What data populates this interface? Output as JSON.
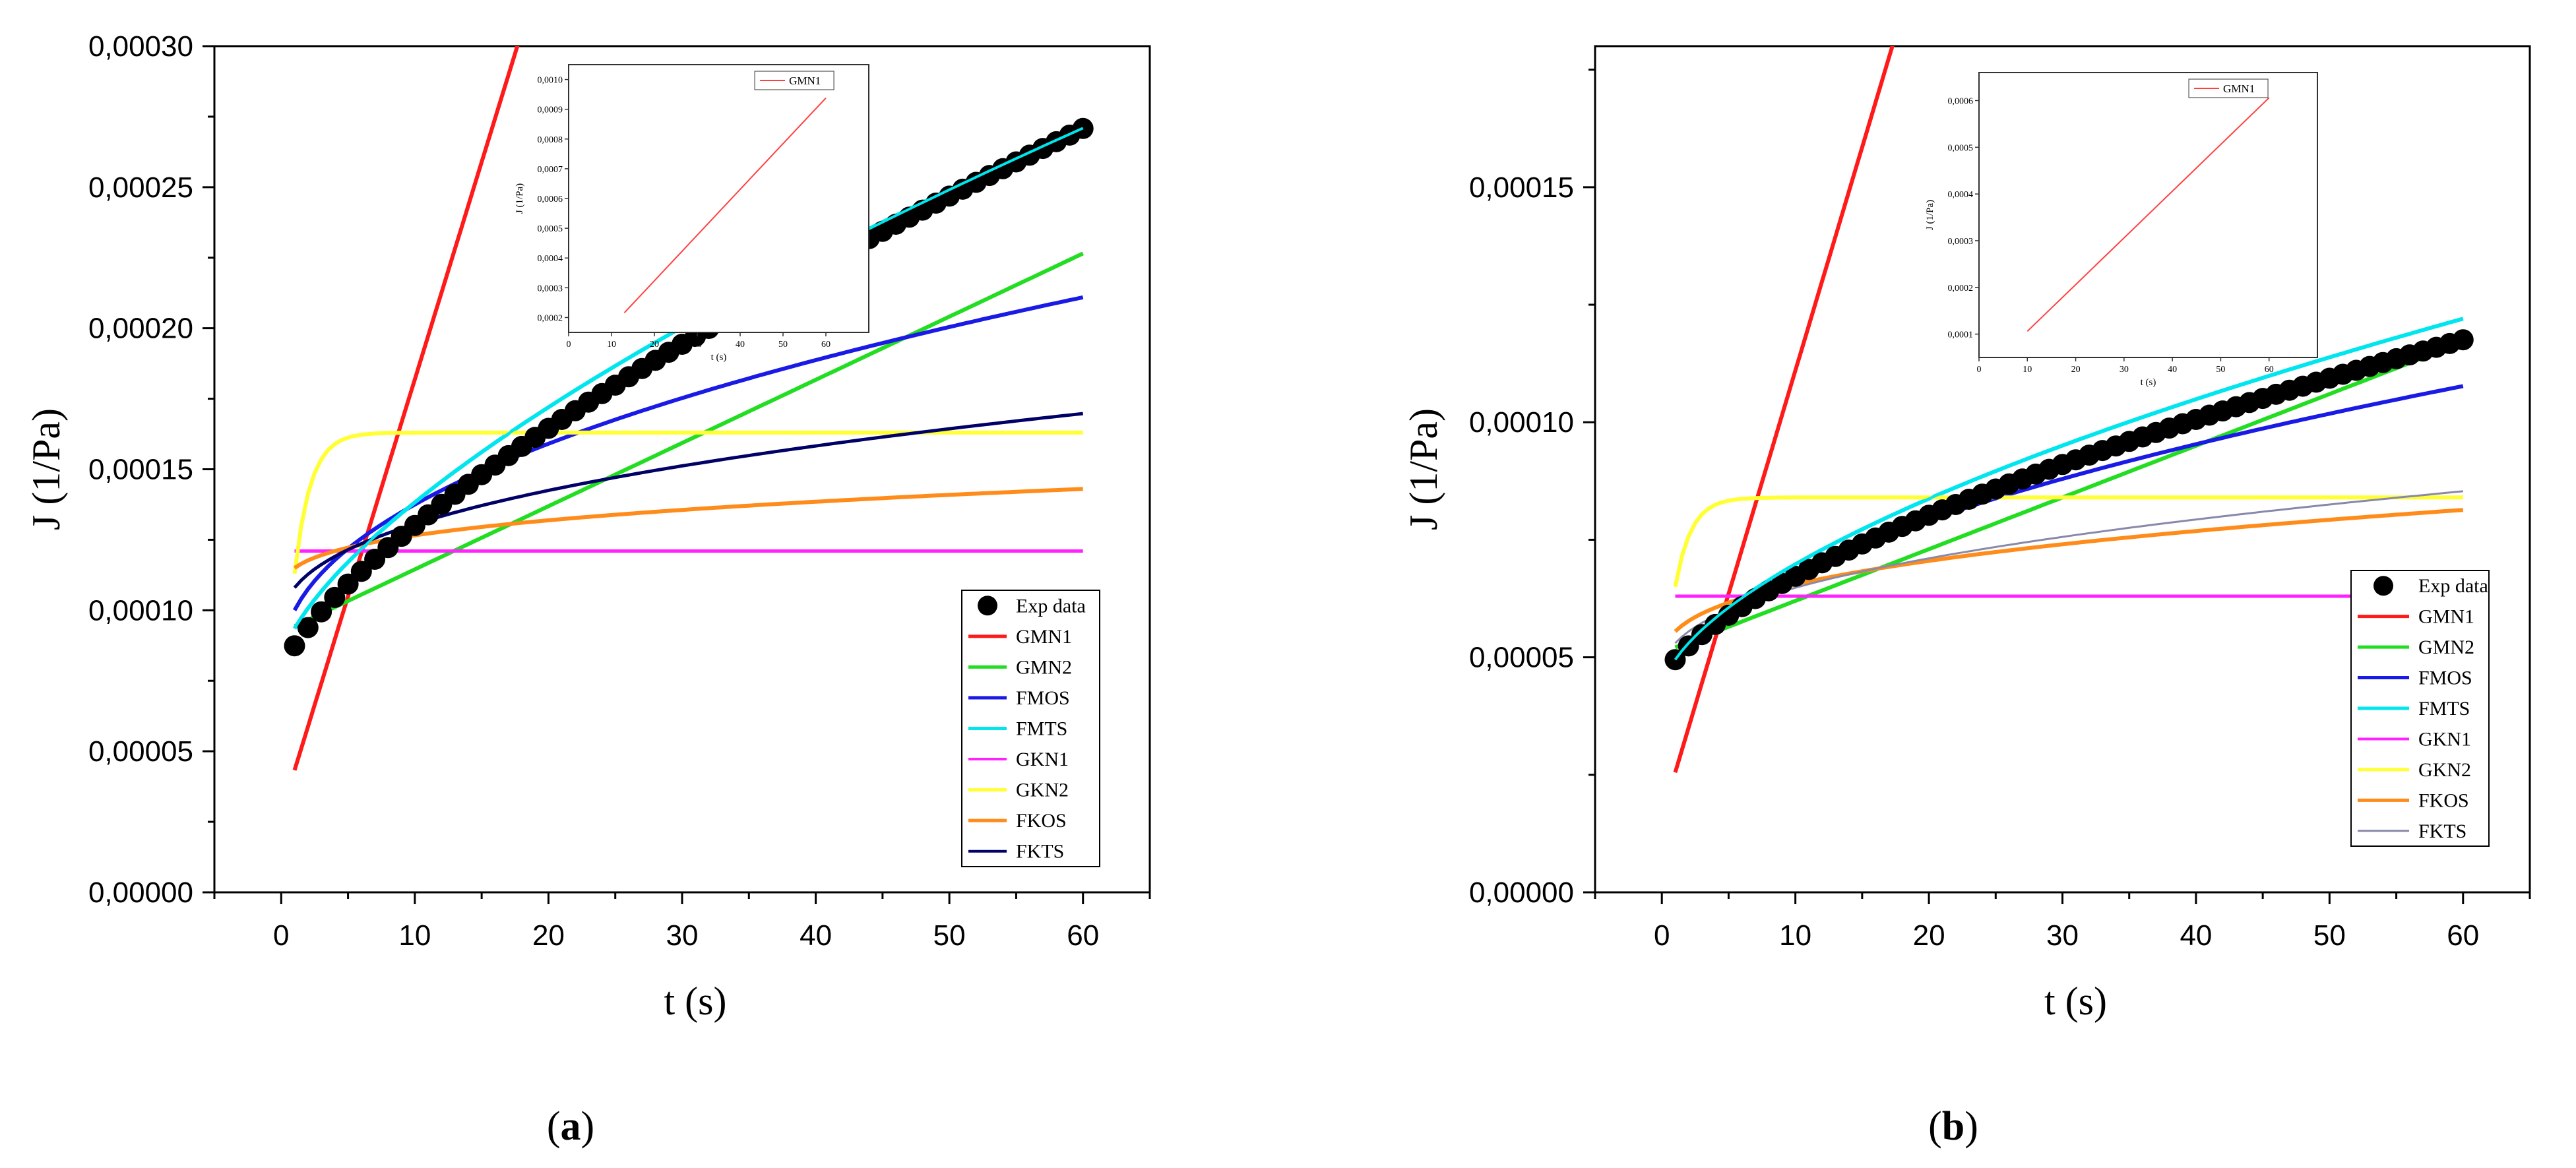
{
  "chart_data": [
    {
      "type": "line",
      "panel": "a",
      "panel_label": "(a)",
      "panel_label_parts": [
        "(",
        "a",
        ")"
      ],
      "xlabel": "t (s)",
      "ylabel": "J (1/Pa)",
      "xlim": [
        -5,
        65
      ],
      "ylim": [
        0,
        0.0003
      ],
      "xticks": [
        0,
        10,
        20,
        30,
        40,
        50,
        60
      ],
      "xtick_labels": [
        "0",
        "10",
        "20",
        "30",
        "40",
        "50",
        "60"
      ],
      "yticks": [
        0,
        5e-05,
        0.0001,
        0.00015,
        0.0002,
        0.00025,
        0.0003
      ],
      "ytick_labels": [
        "0,00000",
        "0,00005",
        "0,00010",
        "0,00015",
        "0,00020",
        "0,00025",
        "0,00030"
      ],
      "legend": [
        "Exp data",
        "GMN1",
        "GMN2",
        "FMOS",
        "FMTS",
        "GKN1",
        "GKN2",
        "FKOS",
        "FKTS"
      ],
      "series": [
        {
          "name": "Exp data",
          "kind": "scatter",
          "color": "#000000",
          "model": {
            "type": "power",
            "a": 8.74e-05,
            "c": 9.85e-06,
            "n": 0.727
          }
        },
        {
          "name": "GMN1",
          "kind": "line",
          "color": "#ff1a1a",
          "width": 6,
          "model": {
            "type": "linear",
            "a": 2.79e-05,
            "b": 1.54e-05
          }
        },
        {
          "name": "GMN2",
          "kind": "line",
          "color": "#22dd22",
          "width": 6,
          "model": {
            "type": "linear",
            "a": 9.21e-05,
            "b": 2.24e-06
          }
        },
        {
          "name": "FMOS",
          "kind": "line",
          "color": "#1a1ae6",
          "width": 6,
          "model": {
            "type": "power",
            "a": 0.0001,
            "c": 1.99e-05,
            "n": 0.46
          }
        },
        {
          "name": "FMTS",
          "kind": "line",
          "color": "#00e5ee",
          "width": 6,
          "model": {
            "type": "power",
            "a": 9.35e-05,
            "c": 1.21e-05,
            "n": 0.672
          }
        },
        {
          "name": "GKN1",
          "kind": "line",
          "color": "#ff22ff",
          "width": 5,
          "model": {
            "type": "const",
            "a": 0.000121
          }
        },
        {
          "name": "GKN2",
          "kind": "line",
          "color": "#ffff33",
          "width": 6,
          "model": {
            "type": "exp",
            "a": 0.000113,
            "b": 0.000163,
            "tau": 1.2
          }
        },
        {
          "name": "FKOS",
          "kind": "line",
          "color": "#ff8c1a",
          "width": 6,
          "model": {
            "type": "power",
            "a": 0.000115,
            "c": 1.16e-05,
            "n": 0.3
          }
        },
        {
          "name": "FKTS",
          "kind": "line",
          "color": "#000066",
          "width": 5,
          "model": {
            "type": "power",
            "a": 0.000108,
            "c": 1.49e-05,
            "n": 0.4
          }
        }
      ],
      "inset": {
        "legend": [
          "GMN1"
        ],
        "xlabel": "t (s)",
        "ylabel": "J  (1/Pa)",
        "xlim": [
          0,
          70
        ],
        "ylim": [
          0.00015,
          0.00105
        ],
        "xticks": [
          0,
          10,
          20,
          30,
          40,
          50,
          60
        ],
        "xtick_labels": [
          "0",
          "10",
          "20",
          "30",
          "40",
          "50",
          "60"
        ],
        "yticks": [
          0.0002,
          0.0003,
          0.0004,
          0.0005,
          0.0006,
          0.0007,
          0.0008,
          0.0009,
          0.001
        ],
        "ytick_labels": [
          "0,0002",
          "0,0003",
          "0,0004",
          "0,0005",
          "0,0006",
          "0,0007",
          "0,0008",
          "0,0009",
          "0,0010"
        ],
        "line": {
          "x": [
            13,
            60
          ],
          "y": [
            0.000216,
            0.000938
          ],
          "color": "#ff4040"
        }
      }
    },
    {
      "type": "line",
      "panel": "b",
      "panel_label": "(b)",
      "panel_label_parts": [
        "(",
        "b",
        ")"
      ],
      "xlabel": "t (s)",
      "ylabel": "J (1/Pa)",
      "xlim": [
        -5,
        65
      ],
      "ylim": [
        0,
        0.00018
      ],
      "xticks": [
        0,
        10,
        20,
        30,
        40,
        50,
        60
      ],
      "xtick_labels": [
        "0",
        "10",
        "20",
        "30",
        "40",
        "50",
        "60"
      ],
      "yticks": [
        0,
        5e-05,
        0.0001,
        0.00015
      ],
      "ytick_labels": [
        "0,00000",
        "0,00005",
        "0,00010",
        "0,00015"
      ],
      "legend": [
        "Exp data",
        "GMN1",
        "GMN2",
        "FMOS",
        "FMTS",
        "GKN1",
        "GKN2",
        "FKOS",
        "FKTS"
      ],
      "series": [
        {
          "name": "Exp data",
          "kind": "scatter",
          "color": "#000000",
          "model": {
            "type": "power",
            "a": 4.95e-05,
            "c": 5.11e-06,
            "n": 0.65
          }
        },
        {
          "name": "GMN1",
          "kind": "line",
          "color": "#ff1a1a",
          "width": 6,
          "model": {
            "type": "linear",
            "a": 1.6e-05,
            "b": 9.5e-06
          }
        },
        {
          "name": "GMN2",
          "kind": "line",
          "color": "#22dd22",
          "width": 6,
          "model": {
            "type": "linear",
            "a": 5.1e-05,
            "b": 1.1e-06
          }
        },
        {
          "name": "FMOS",
          "kind": "line",
          "color": "#1a1ae6",
          "width": 6,
          "model": {
            "type": "power",
            "a": 4.9e-05,
            "c": 8.7e-06,
            "n": 0.5
          }
        },
        {
          "name": "FMTS",
          "kind": "line",
          "color": "#00e5ee",
          "width": 6,
          "model": {
            "type": "power",
            "a": 4.95e-05,
            "c": 6.8e-06,
            "n": 0.6
          }
        },
        {
          "name": "GKN1",
          "kind": "line",
          "color": "#ff22ff",
          "width": 5,
          "model": {
            "type": "const",
            "a": 6.3e-05
          }
        },
        {
          "name": "GKN2",
          "kind": "line",
          "color": "#ffff33",
          "width": 6,
          "model": {
            "type": "exp",
            "a": 6.5e-05,
            "b": 8.4e-05,
            "tau": 1.2
          }
        },
        {
          "name": "FKOS",
          "kind": "line",
          "color": "#ff8c1a",
          "width": 6,
          "model": {
            "type": "power",
            "a": 5.55e-05,
            "c": 8.1e-06,
            "n": 0.35
          }
        },
        {
          "name": "FKTS",
          "kind": "line",
          "color": "#8888aa",
          "width": 3,
          "model": {
            "type": "power",
            "a": 5.3e-05,
            "c": 7.8e-06,
            "n": 0.4
          }
        }
      ],
      "inset": {
        "legend": [
          "GMN1"
        ],
        "xlabel": "t (s)",
        "ylabel": "J  (1/Pa)",
        "xlim": [
          0,
          70
        ],
        "ylim": [
          5e-05,
          0.00066
        ],
        "xticks": [
          0,
          10,
          20,
          30,
          40,
          50,
          60
        ],
        "xtick_labels": [
          "0",
          "10",
          "20",
          "30",
          "40",
          "50",
          "60"
        ],
        "yticks": [
          0.0001,
          0.0002,
          0.0003,
          0.0004,
          0.0005,
          0.0006
        ],
        "ytick_labels": [
          "0,0001",
          "0,0002",
          "0,0003",
          "0,0004",
          "0,0005",
          "0,0006"
        ],
        "line": {
          "x": [
            10,
            60
          ],
          "y": [
            0.000106,
            0.000606
          ],
          "color": "#ff4040"
        }
      }
    }
  ]
}
